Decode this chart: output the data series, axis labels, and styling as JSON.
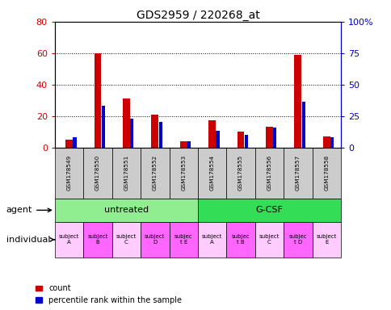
{
  "title": "GDS2959 / 220268_at",
  "samples": [
    "GSM178549",
    "GSM178550",
    "GSM178551",
    "GSM178552",
    "GSM178553",
    "GSM178554",
    "GSM178555",
    "GSM178556",
    "GSM178557",
    "GSM178558"
  ],
  "count_values": [
    5,
    60,
    31,
    21,
    4,
    17,
    10,
    13,
    59,
    7
  ],
  "percentile_values": [
    8,
    33,
    23,
    20,
    5,
    13,
    10,
    16,
    36,
    8
  ],
  "ylim_left": [
    0,
    80
  ],
  "ylim_right": [
    0,
    100
  ],
  "yticks_left": [
    0,
    20,
    40,
    60,
    80
  ],
  "yticks_right": [
    0,
    25,
    50,
    75,
    100
  ],
  "ytick_labels_right": [
    "0",
    "25",
    "50",
    "75",
    "100%"
  ],
  "count_color": "#cc0000",
  "percentile_color": "#0000cc",
  "red_bar_width": 0.25,
  "blue_bar_width": 0.12,
  "agent_groups": [
    {
      "label": "untreated",
      "start": 0,
      "end": 4,
      "color": "#90ee90"
    },
    {
      "label": "G-CSF",
      "start": 5,
      "end": 9,
      "color": "#33dd55"
    }
  ],
  "individual_labels": [
    "subject\nA",
    "subject\nB",
    "subject\nC",
    "subject\nD",
    "subjec\nt E",
    "subject\nA",
    "subjec\nt B",
    "subject\nC",
    "subjec\nt D",
    "subject\nE"
  ],
  "individual_highlight": [
    1,
    3,
    4,
    6,
    8
  ],
  "individual_bg_highlight": "#ff66ff",
  "individual_bg_normal": "#ffccff",
  "agent_label": "agent",
  "individual_label": "individual",
  "legend_count": "count",
  "legend_percentile": "percentile rank within the sample",
  "xticklabel_bg": "#cccccc"
}
